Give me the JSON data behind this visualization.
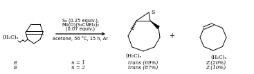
{
  "background_color": "#ffffff",
  "reagents_line1": "S₈ (0.25 equiv.),",
  "reagents_line2": "Mo(O)(S₂CNEt₂)₂",
  "reagents_line3": "(0.07 equiv.)",
  "conditions": "acetone, 56 °C, 15 h, Ar",
  "row1": {
    "config": "E",
    "n_label": "n = 1",
    "product1": "trans (69%)",
    "product2": "Z (20%)"
  },
  "row2": {
    "config": "E",
    "n_label": "n = 2",
    "product1": "trans (87%)",
    "product2": "Z (10%)"
  },
  "plus_sign": "+",
  "reactant_label": "(H₂C)ₙ",
  "product1_label": "(H₂C)ₙ",
  "product2_label": "(H₂C)ₙ",
  "sulfur_label": "S"
}
